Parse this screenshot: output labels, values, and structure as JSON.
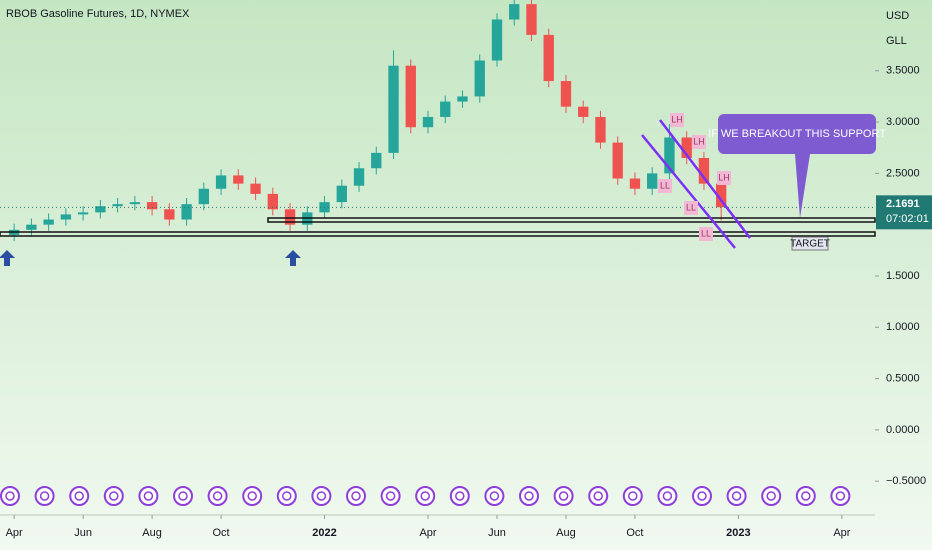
{
  "chart_data": {
    "type": "candlestick",
    "title": "RBOB Gasoline Futures, 1D, NYMEX",
    "currency": "USD",
    "unit": "GLL",
    "x": [
      0,
      0.5,
      1,
      1.5,
      2,
      2.5,
      3,
      3.5,
      4,
      4.5,
      5,
      5.5,
      6,
      6.5,
      7,
      7.5,
      8,
      8.5,
      9,
      9.5,
      10,
      10.5,
      11,
      11.5,
      12,
      12.5,
      13,
      13.5,
      14,
      14.5,
      15,
      15.5,
      16,
      16.5,
      17,
      17.5,
      18,
      18.5,
      19,
      19.5,
      20,
      20.5
    ],
    "open": [
      1.9,
      1.95,
      2.0,
      2.05,
      2.1,
      2.12,
      2.18,
      2.2,
      2.22,
      2.15,
      2.05,
      2.2,
      2.35,
      2.48,
      2.4,
      2.3,
      2.15,
      2.0,
      2.12,
      2.22,
      2.38,
      2.55,
      2.7,
      3.55,
      2.95,
      3.05,
      3.2,
      3.25,
      3.6,
      4.0,
      4.15,
      3.85,
      3.4,
      3.15,
      3.05,
      2.8,
      2.45,
      2.35,
      2.5,
      2.85,
      2.65,
      2.4
    ],
    "high": [
      2.01,
      2.06,
      2.11,
      2.16,
      2.18,
      2.24,
      2.26,
      2.28,
      2.28,
      2.21,
      2.26,
      2.41,
      2.54,
      2.54,
      2.46,
      2.36,
      2.21,
      2.18,
      2.28,
      2.44,
      2.61,
      2.76,
      3.7,
      3.61,
      3.11,
      3.26,
      3.31,
      3.66,
      4.06,
      4.21,
      4.21,
      3.91,
      3.46,
      3.21,
      3.11,
      2.86,
      2.51,
      2.56,
      2.98,
      2.91,
      2.71,
      2.46
    ],
    "low": [
      1.84,
      1.89,
      1.94,
      1.99,
      2.04,
      2.06,
      2.12,
      2.14,
      2.09,
      1.99,
      1.99,
      2.14,
      2.29,
      2.34,
      2.24,
      2.09,
      1.94,
      1.94,
      2.06,
      2.16,
      2.32,
      2.49,
      2.64,
      2.89,
      2.89,
      2.99,
      3.14,
      3.19,
      3.54,
      3.94,
      3.79,
      3.34,
      3.09,
      2.99,
      2.74,
      2.39,
      2.29,
      2.29,
      2.44,
      2.59,
      2.34,
      2.04
    ],
    "close": [
      1.95,
      2.0,
      2.05,
      2.1,
      2.12,
      2.18,
      2.2,
      2.22,
      2.15,
      2.05,
      2.2,
      2.35,
      2.48,
      2.4,
      2.3,
      2.15,
      2.0,
      2.12,
      2.22,
      2.38,
      2.55,
      2.7,
      3.55,
      2.95,
      3.05,
      3.2,
      3.25,
      3.6,
      4.0,
      4.15,
      3.85,
      3.4,
      3.15,
      3.05,
      2.8,
      2.45,
      2.35,
      2.5,
      2.85,
      2.65,
      2.4,
      2.17
    ],
    "up_color": "#26a69a",
    "down_color": "#ef5350",
    "xlim": [
      -0.41,
      24.96
    ],
    "xticks": [
      {
        "value": 0,
        "label": "Apr"
      },
      {
        "value": 2,
        "label": "Jun"
      },
      {
        "value": 4,
        "label": "Aug"
      },
      {
        "value": 6,
        "label": "Oct"
      },
      {
        "value": 9,
        "label": "2022"
      },
      {
        "value": 12,
        "label": "Apr"
      },
      {
        "value": 14,
        "label": "Jun"
      },
      {
        "value": 16,
        "label": "Aug"
      },
      {
        "value": 18,
        "label": "Oct"
      },
      {
        "value": 21,
        "label": "2023"
      },
      {
        "value": 24,
        "label": "Apr"
      }
    ],
    "ylim": [
      -0.83,
      4.19
    ],
    "yticks": [
      {
        "value": 3.5,
        "label": "3.5000"
      },
      {
        "value": 3.0,
        "label": "3.0000"
      },
      {
        "value": 2.5,
        "label": "2.5000"
      },
      {
        "value": 1.5,
        "label": "1.5000"
      },
      {
        "value": 1.0,
        "label": "1.0000"
      },
      {
        "value": 0.5,
        "label": "0.5000"
      },
      {
        "value": 0,
        "label": "0.0000"
      },
      {
        "value": -0.5,
        "label": "−0.5000"
      }
    ],
    "last_price": {
      "value": 2.1691,
      "label": "2.1691"
    },
    "countdown": "07:02:01",
    "callout": "IF WE BREAKOUT THIS SUPPORT",
    "target": "TARGET",
    "pivots": [
      "LH",
      "LH",
      "LH",
      "LL",
      "LL",
      "LL"
    ]
  }
}
